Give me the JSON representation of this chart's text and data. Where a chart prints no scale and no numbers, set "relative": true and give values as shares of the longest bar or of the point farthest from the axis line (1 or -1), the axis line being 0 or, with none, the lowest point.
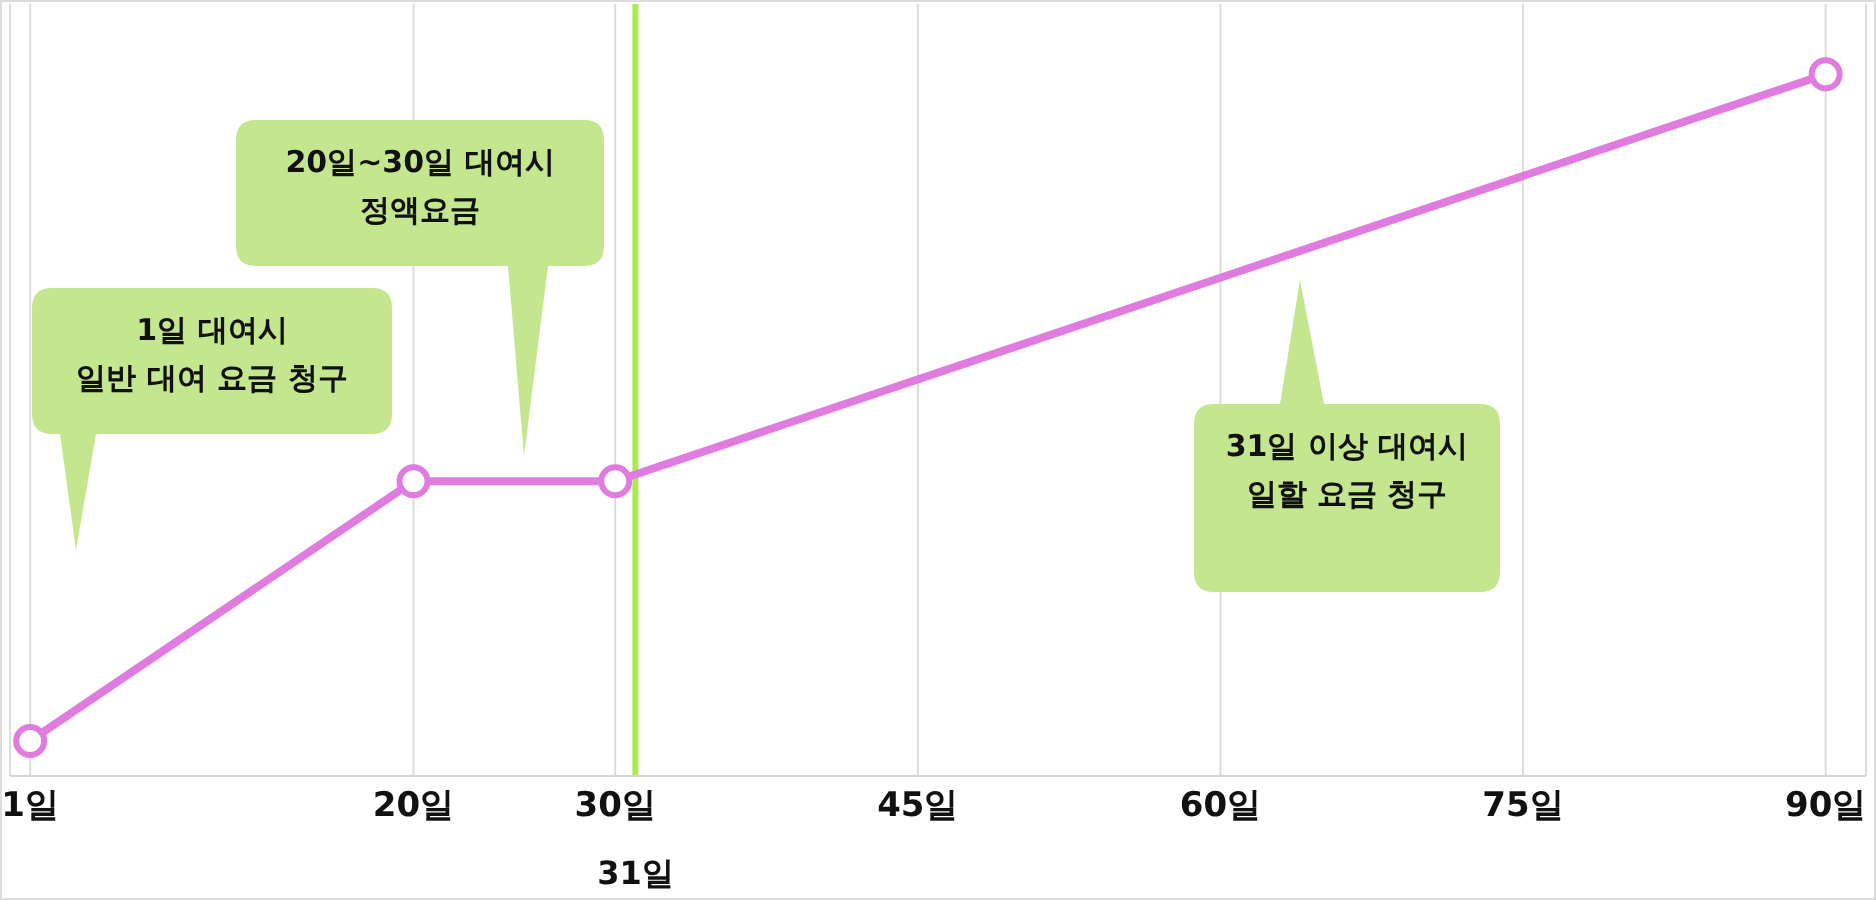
{
  "chart_data": {
    "type": "line",
    "x": [
      1,
      20,
      30,
      90
    ],
    "series": [
      {
        "color": "#e07ce0",
        "values": [
          0.05,
          0.42,
          0.42,
          1
        ]
      }
    ],
    "relative": true,
    "xlim": [
      0,
      92
    ],
    "xticks": [
      {
        "value": 1,
        "label": "1일"
      },
      {
        "value": 20,
        "label": "20일"
      },
      {
        "value": 30,
        "label": "30일"
      },
      {
        "value": 45,
        "label": "45일"
      },
      {
        "value": 60,
        "label": "60일"
      },
      {
        "value": 75,
        "label": "75일"
      },
      {
        "value": 90,
        "label": "90일"
      }
    ],
    "grid": "x",
    "marker": "circle",
    "line_style": "solid",
    "ref_lines": [
      {
        "axis": "x",
        "value": 31,
        "label": "31일",
        "color": "#a8ec4f"
      }
    ],
    "annotations": [
      "1일 대여시\n일반 대여 요금 청구",
      "20일~30일 대여시\n정액요금",
      "31일 이상 대여시\n일할 요금 청구"
    ]
  }
}
